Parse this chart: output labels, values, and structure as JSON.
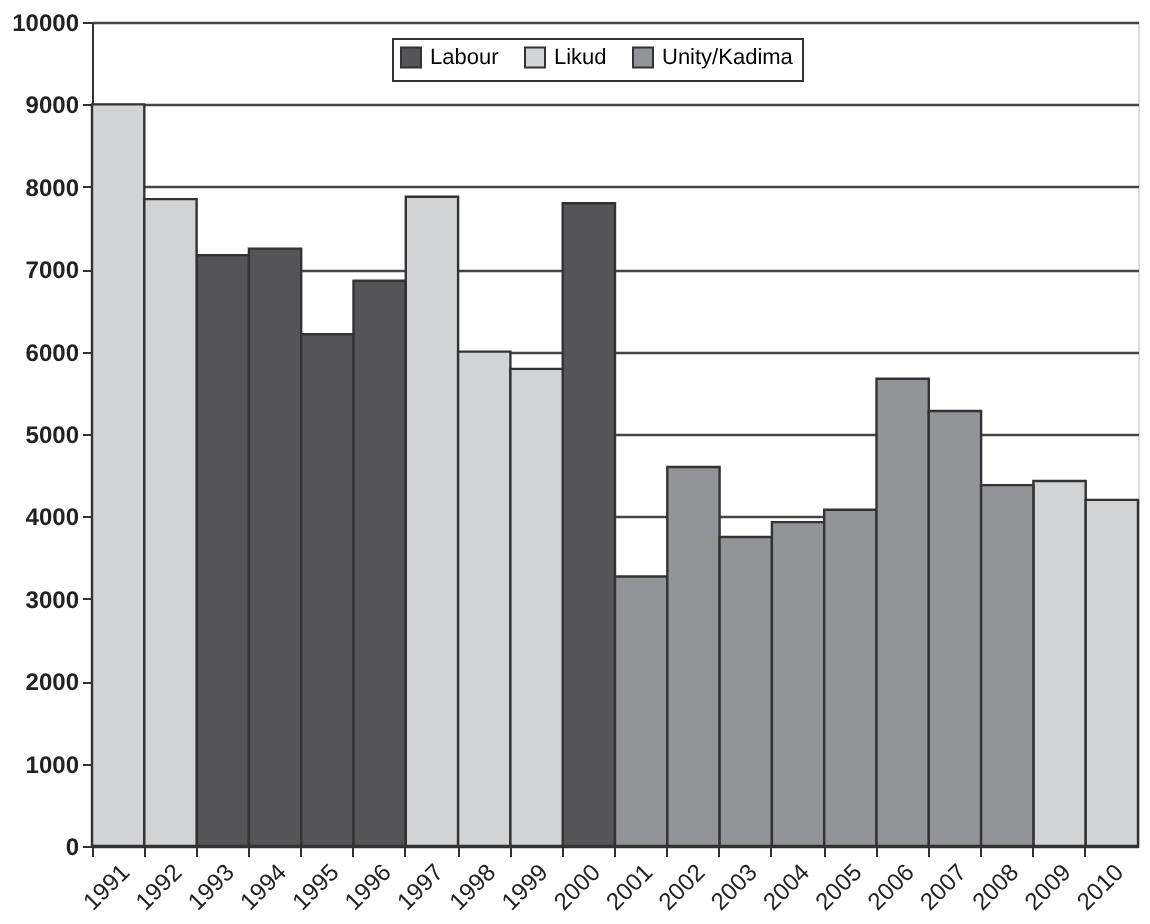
{
  "chart_data": {
    "type": "bar",
    "categories": [
      "1991",
      "1992",
      "1993",
      "1994",
      "1995",
      "1996",
      "1997",
      "1998",
      "1999",
      "2000",
      "2001",
      "2002",
      "2003",
      "2004",
      "2005",
      "2006",
      "2007",
      "2008",
      "2009",
      "2010"
    ],
    "series": [
      {
        "name": "Labour",
        "color": "#555558",
        "values": [
          null,
          null,
          7170,
          7250,
          6210,
          6860,
          null,
          null,
          null,
          7800,
          null,
          null,
          null,
          null,
          null,
          null,
          null,
          null,
          null,
          null
        ]
      },
      {
        "name": "Likud",
        "color": "#d2d3d5",
        "values": [
          9000,
          7850,
          null,
          null,
          null,
          null,
          7880,
          6000,
          5790,
          null,
          null,
          null,
          null,
          null,
          null,
          null,
          null,
          null,
          4430,
          4200
        ]
      },
      {
        "name": "Unity/Kadima",
        "color": "#939497",
        "values": [
          null,
          null,
          null,
          null,
          null,
          null,
          null,
          null,
          null,
          null,
          3270,
          4600,
          3750,
          3930,
          4080,
          5670,
          5280,
          4380,
          null,
          null
        ]
      }
    ],
    "ylim": [
      0,
      10000
    ],
    "yticks": [
      0,
      1000,
      2000,
      3000,
      4000,
      5000,
      6000,
      7000,
      8000,
      9000,
      10000
    ],
    "grid": "y",
    "legend": "top"
  }
}
